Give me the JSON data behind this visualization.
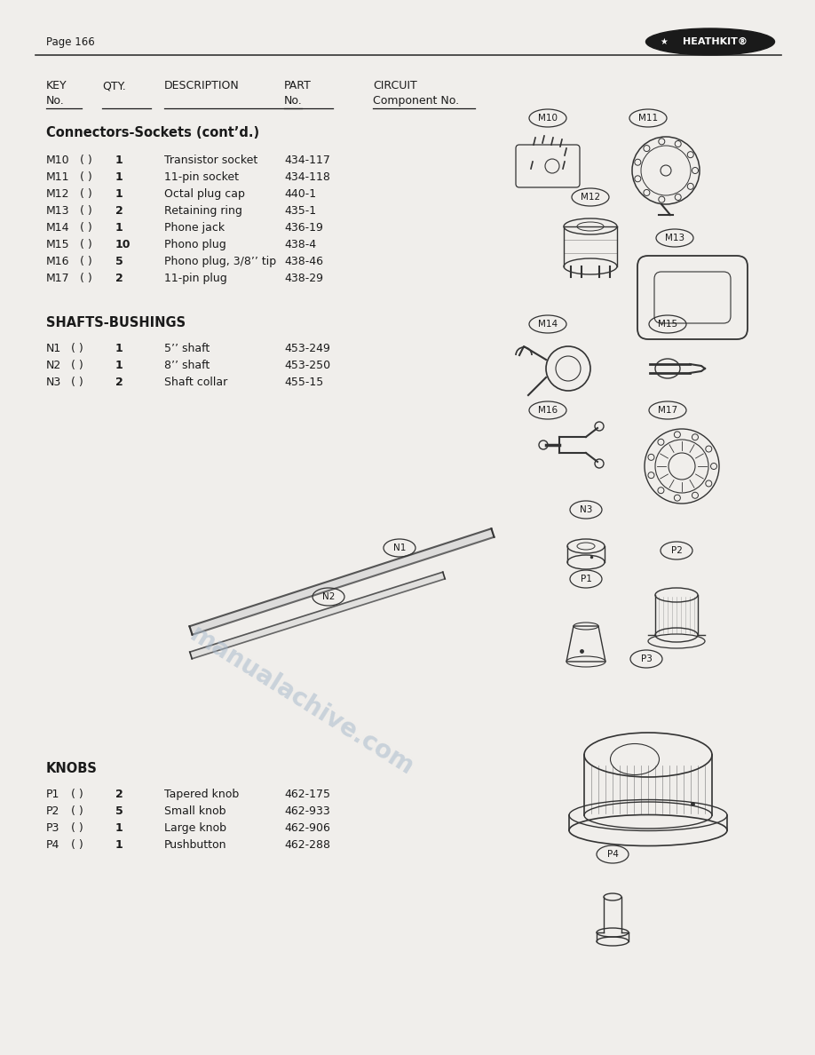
{
  "page_number": "Page 166",
  "bg_color": "#f0eeeb",
  "logo_text": "HEATHKIT®",
  "col_headers": [
    "KEY",
    "QTY.",
    "DESCRIPTION",
    "PART",
    "CIRCUIT"
  ],
  "col_headers2": [
    "No.",
    "",
    "",
    "No.",
    "Component No."
  ],
  "section1_title": "Connectors-Sockets (cont’d.)",
  "section1_rows": [
    [
      "M10",
      "( )",
      "1",
      "Transistor socket",
      "434-117"
    ],
    [
      "M11",
      "( )",
      "1",
      "11-pin socket",
      "434-118"
    ],
    [
      "M12",
      "( )",
      "1",
      "Octal plug cap",
      "440-1"
    ],
    [
      "M13",
      "( )",
      "2",
      "Retaining ring",
      "435-1"
    ],
    [
      "M14",
      "( )",
      "1",
      "Phone jack",
      "436-19"
    ],
    [
      "M15",
      "( )",
      "10",
      "Phono plug",
      "438-4"
    ],
    [
      "M16",
      "( )",
      "5",
      "Phono plug, 3/8’’ tip",
      "438-46"
    ],
    [
      "M17",
      "( )",
      "2",
      "11-pin plug",
      "438-29"
    ]
  ],
  "section2_title": "SHAFTS-BUSHINGS",
  "section2_rows": [
    [
      "N1",
      "( )",
      "1",
      "5’’ shaft",
      "453-249"
    ],
    [
      "N2",
      "( )",
      "1",
      "8’’ shaft",
      "453-250"
    ],
    [
      "N3",
      "( )",
      "2",
      "Shaft collar",
      "455-15"
    ]
  ],
  "section3_title": "KNOBS",
  "section3_rows": [
    [
      "P1",
      "( )",
      "2",
      "Tapered knob",
      "462-175"
    ],
    [
      "P2",
      "( )",
      "5",
      "Small knob",
      "462-933"
    ],
    [
      "P3",
      "( )",
      "1",
      "Large knob",
      "462-906"
    ],
    [
      "P4",
      "( )",
      "1",
      "Pushbutton",
      "462-288"
    ]
  ],
  "watermark_text": "manualachive.com",
  "watermark_color": "#aabbcc",
  "text_color": "#1a1a1a",
  "line_color": "#333333"
}
